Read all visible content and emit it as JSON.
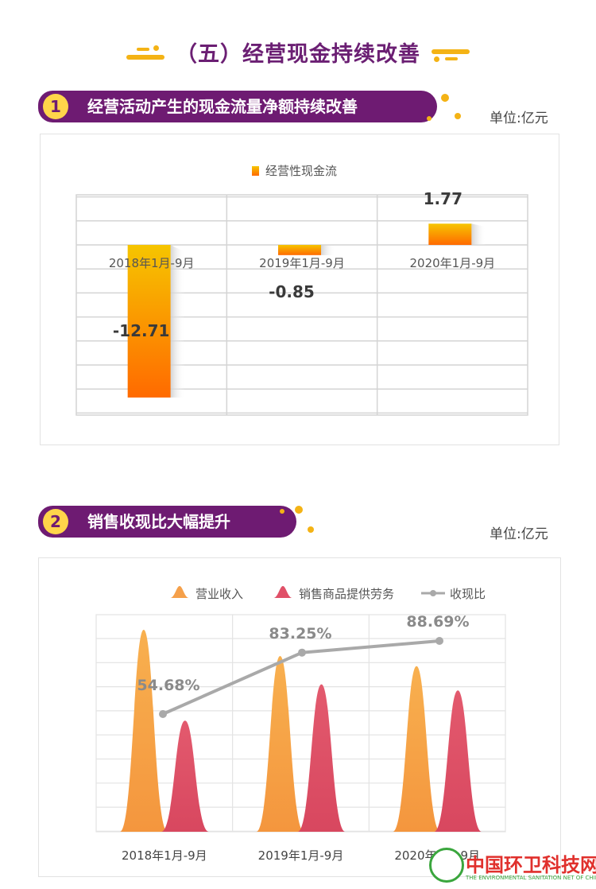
{
  "main_title": "（五）经营现金持续改善",
  "section1": {
    "number": "1",
    "title": "经营活动产生的现金流量净额持续改善",
    "unit": "单位:亿元"
  },
  "section2": {
    "number": "2",
    "title": "销售收现比大幅提升",
    "unit": "单位:亿元"
  },
  "watermark": {
    "text": "中国环卫科技网",
    "subtext": "THE ENVIRONMENTAL SANITATION NET OF CHINA"
  },
  "colors": {
    "accent_purple": "#6e1b72",
    "accent_yellow": "#f4b315",
    "bar_top": "#f6c500",
    "bar_bottom": "#ff6a00",
    "revenue": "#f5a04a",
    "sales_cash": "#e05068",
    "ratio_line": "#a9a9a9"
  },
  "chart_data": [
    {
      "type": "bar",
      "categories": [
        "2018年1月-9月",
        "2019年1月-9月",
        "2020年1月-9月"
      ],
      "series": [
        {
          "name": "经营性现金流",
          "values": [
            -12.71,
            -0.85,
            1.77
          ]
        }
      ],
      "data_labels": [
        "-12.71",
        "-0.85",
        "1.77"
      ],
      "ylim": [
        -14,
        4
      ],
      "grid": true,
      "legend": "top-center"
    },
    {
      "type": "bar",
      "categories": [
        "2018年1月-9月",
        "2019年1月-9月",
        "2020年1月-9月"
      ],
      "series": [
        {
          "name": "营业收入",
          "values": [
            1.0,
            0.87,
            0.82
          ]
        },
        {
          "name": "销售商品提供劳务",
          "values": [
            0.55,
            0.73,
            0.7
          ]
        },
        {
          "name": "收现比",
          "type": "line",
          "values": [
            54.68,
            83.25,
            88.69
          ],
          "unit": "%"
        }
      ],
      "data_labels": [
        "54.68%",
        "83.25%",
        "88.69%"
      ],
      "grid": true,
      "legend": "top-center"
    }
  ]
}
